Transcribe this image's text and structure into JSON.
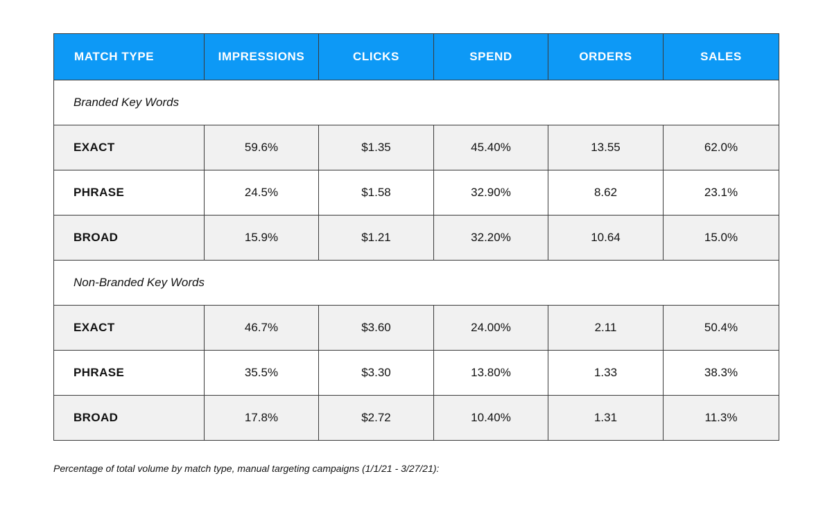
{
  "table": {
    "headers": [
      "MATCH TYPE",
      "IMPRESSIONS",
      "CLICKS",
      "SPEND",
      "ORDERS",
      "SALES"
    ],
    "sections": [
      {
        "title": "Branded Key Words",
        "rows": [
          {
            "label": "EXACT",
            "impressions": "59.6%",
            "clicks": "$1.35",
            "spend": "45.40%",
            "orders": "13.55",
            "sales": "62.0%"
          },
          {
            "label": "PHRASE",
            "impressions": "24.5%",
            "clicks": "$1.58",
            "spend": "32.90%",
            "orders": "8.62",
            "sales": "23.1%"
          },
          {
            "label": "BROAD",
            "impressions": "15.9%",
            "clicks": "$1.21",
            "spend": "32.20%",
            "orders": "10.64",
            "sales": "15.0%"
          }
        ]
      },
      {
        "title": "Non-Branded Key Words",
        "rows": [
          {
            "label": "EXACT",
            "impressions": "46.7%",
            "clicks": "$3.60",
            "spend": "24.00%",
            "orders": "2.11",
            "sales": "50.4%"
          },
          {
            "label": "PHRASE",
            "impressions": "35.5%",
            "clicks": "$3.30",
            "spend": "13.80%",
            "orders": "1.33",
            "sales": "38.3%"
          },
          {
            "label": "BROAD",
            "impressions": "17.8%",
            "clicks": "$2.72",
            "spend": "10.40%",
            "orders": "1.31",
            "sales": "11.3%"
          }
        ]
      }
    ]
  },
  "footnote": "Percentage of total volume by match type, manual targeting campaigns (1/1/21 - 3/27/21):",
  "colors": {
    "header_bg": "#0d99f6",
    "header_text": "#ffffff",
    "row_bg": "#f1f1f1",
    "border": "#3a3a3a"
  }
}
